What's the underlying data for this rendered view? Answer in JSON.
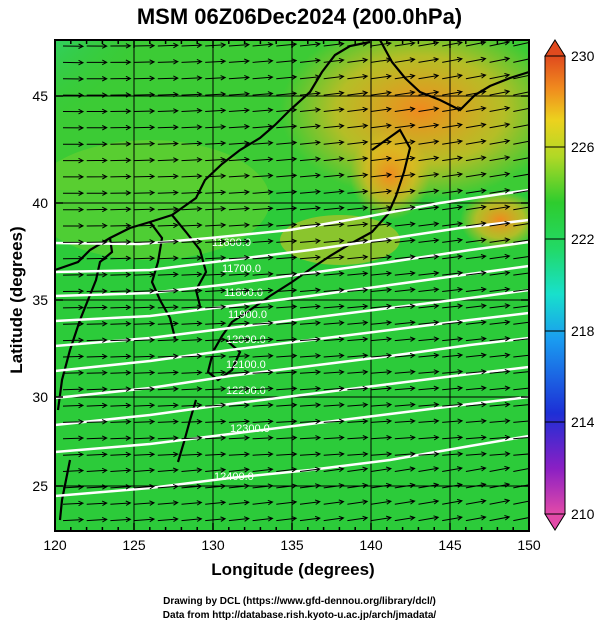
{
  "title": "MSM 06Z06Dec2024 (200.0hPa)",
  "axes": {
    "xlabel": "Longitude (degrees)",
    "ylabel": "Latitude  (degrees)",
    "xticks": [
      "120",
      "125",
      "130",
      "135",
      "140",
      "145",
      "150"
    ],
    "yticks": [
      "25",
      "30",
      "35",
      "40",
      "45"
    ]
  },
  "colorbar": {
    "labels": [
      "230",
      "226",
      "222",
      "218",
      "214",
      "210"
    ],
    "stops": [
      "#e0389c",
      "#8a1fc4",
      "#1d2fd6",
      "#1a9bf0",
      "#16e0d0",
      "#22d96a",
      "#2ecc2e",
      "#a8d82a",
      "#ecd21e",
      "#f08a1e",
      "#e04a1e"
    ]
  },
  "contour_labels": [
    "11500.0",
    "11600.0",
    "11700.0",
    "11800.0",
    "11900.0",
    "12000.0",
    "12100.0",
    "12200.0",
    "12300.0",
    "12400.0"
  ],
  "credits": {
    "line1": "Drawing by DCL (https://www.gfd-dennou.org/library/dcl/)",
    "line2": "Data from http://database.rish.kyoto-u.ac.jp/arch/jmadata/"
  },
  "colors": {
    "field_main": "#2ccb3a",
    "field_warm": "#f0a020",
    "field_cool": "#38d8b0",
    "contour": "#ffffff"
  }
}
